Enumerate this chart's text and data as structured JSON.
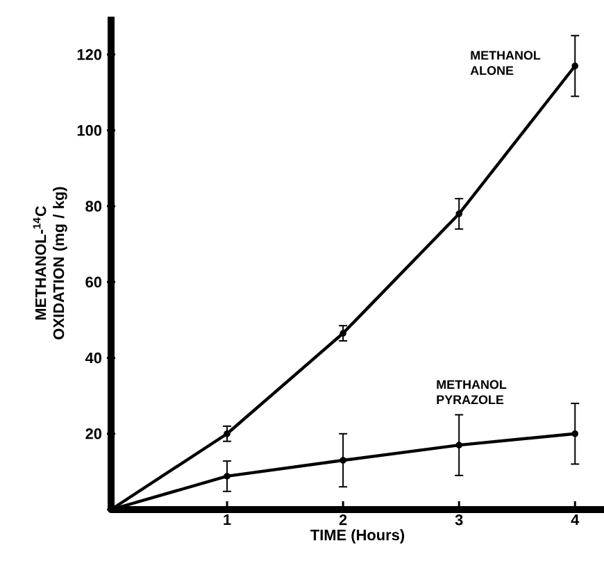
{
  "chart_data": {
    "type": "line",
    "xlabel": "TIME (Hours)",
    "ylabel": "METHANOL-$^{14}$C OXIDATION (mg / kg)",
    "x": [
      0,
      1,
      2,
      3,
      4
    ],
    "xlim": [
      0,
      4.25
    ],
    "ylim": [
      0,
      130
    ],
    "xticks": [
      1,
      2,
      3,
      4
    ],
    "yticks": [
      20,
      40,
      60,
      80,
      100,
      120
    ],
    "legend": false,
    "grid": false,
    "marker": "circle",
    "line_style": "solid",
    "series": [
      {
        "name": "METHANOL ALONE",
        "color": "#000000",
        "values": [
          0,
          20,
          46.5,
          78,
          117
        ],
        "errors": [
          null,
          2,
          2,
          4,
          8
        ]
      },
      {
        "name": "METHANOL PYRAZOLE",
        "color": "#000000",
        "values": [
          0,
          8.8,
          13,
          17,
          20
        ],
        "errors": [
          null,
          4,
          7,
          8,
          8
        ]
      }
    ]
  }
}
